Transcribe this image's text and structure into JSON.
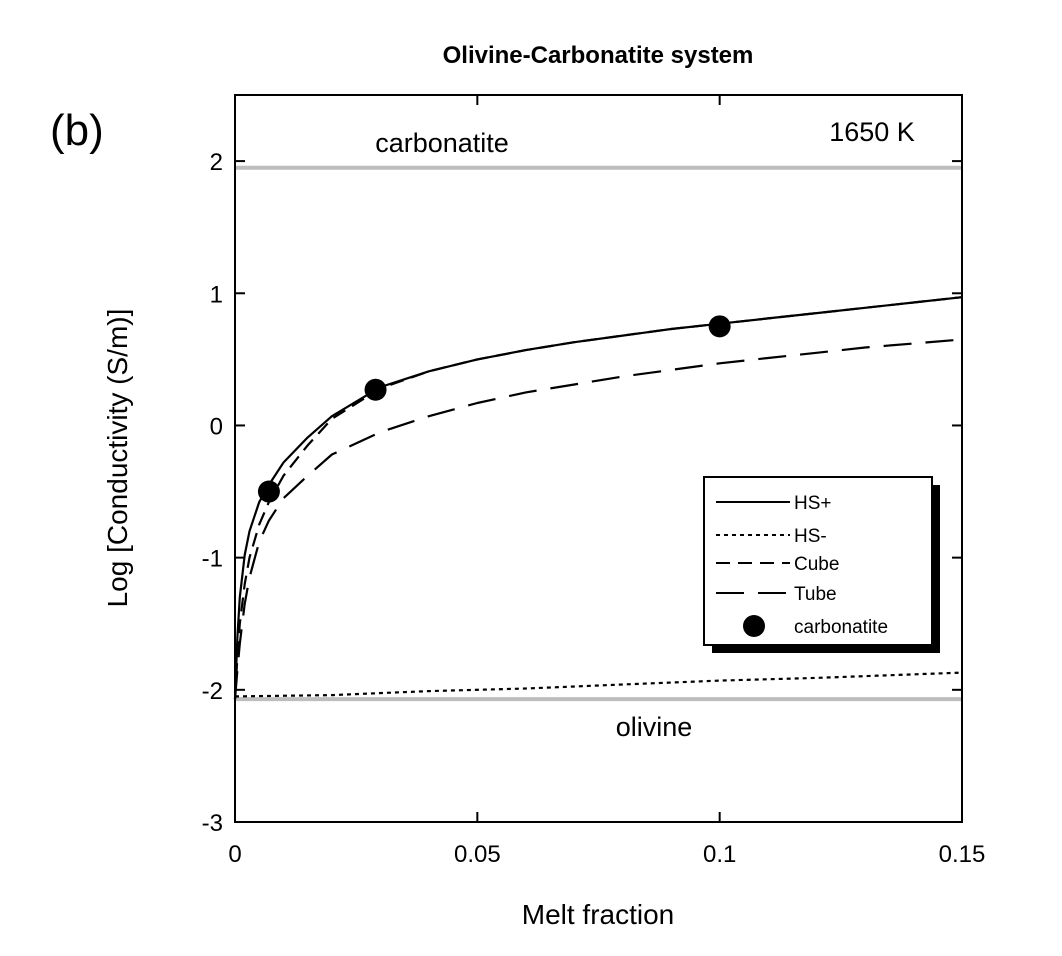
{
  "chart_data": {
    "type": "line",
    "title": "Olivine-Carbonatite system",
    "panel_label": "(b)",
    "annotation": "1650 K",
    "xlabel": "Melt fraction",
    "ylabel": "Log [Conductivity (S/m)]",
    "xlim": [
      0,
      0.15
    ],
    "ylim": [
      -3,
      2.5
    ],
    "x_ticks": [
      0,
      0.05,
      0.1,
      0.15
    ],
    "x_tick_labels": [
      "0",
      "0.05",
      "0.1",
      "0.15"
    ],
    "y_ticks": [
      -3,
      -2,
      -1,
      0,
      1,
      2
    ],
    "y_tick_labels": [
      "-3",
      "-2",
      "-1",
      "0",
      "1",
      "2"
    ],
    "grid": false,
    "legend_position": "right",
    "reference_lines": [
      {
        "name": "carbonatite",
        "y": 1.95,
        "color": "#bdbdbd"
      },
      {
        "name": "olivine",
        "y": -2.07,
        "color": "#bdbdbd"
      }
    ],
    "series": [
      {
        "name": "HS+",
        "style": "solid",
        "x": [
          0,
          0.0005,
          0.001,
          0.002,
          0.003,
          0.005,
          0.007,
          0.01,
          0.015,
          0.02,
          0.03,
          0.04,
          0.05,
          0.06,
          0.07,
          0.08,
          0.09,
          0.1,
          0.11,
          0.12,
          0.13,
          0.14,
          0.15
        ],
        "y": [
          -2.07,
          -1.6,
          -1.3,
          -0.98,
          -0.8,
          -0.58,
          -0.45,
          -0.28,
          -0.09,
          0.07,
          0.29,
          0.41,
          0.5,
          0.57,
          0.63,
          0.68,
          0.73,
          0.77,
          0.81,
          0.85,
          0.89,
          0.93,
          0.97
        ]
      },
      {
        "name": "HS-",
        "style": "dotted",
        "x": [
          0,
          0.02,
          0.04,
          0.06,
          0.08,
          0.1,
          0.12,
          0.15
        ],
        "y": [
          -2.05,
          -2.04,
          -2.01,
          -1.99,
          -1.96,
          -1.93,
          -1.91,
          -1.87
        ]
      },
      {
        "name": "Cube",
        "style": "dashed",
        "x": [
          0,
          0.0005,
          0.001,
          0.002,
          0.003,
          0.005,
          0.007,
          0.01,
          0.015,
          0.02,
          0.03,
          0.04,
          0.05,
          0.06,
          0.07,
          0.08,
          0.09,
          0.1,
          0.11,
          0.12,
          0.13,
          0.14,
          0.15
        ],
        "y": [
          -2.07,
          -1.75,
          -1.5,
          -1.2,
          -1.0,
          -0.75,
          -0.58,
          -0.38,
          -0.15,
          0.05,
          0.28,
          0.41,
          0.5,
          0.57,
          0.63,
          0.68,
          0.73,
          0.77,
          0.81,
          0.85,
          0.89,
          0.93,
          0.97
        ]
      },
      {
        "name": "Tube",
        "style": "longdash",
        "x": [
          0,
          0.0005,
          0.001,
          0.002,
          0.003,
          0.005,
          0.007,
          0.01,
          0.015,
          0.02,
          0.03,
          0.04,
          0.05,
          0.06,
          0.07,
          0.08,
          0.09,
          0.1,
          0.11,
          0.12,
          0.13,
          0.14,
          0.15
        ],
        "y": [
          -2.07,
          -1.85,
          -1.65,
          -1.35,
          -1.15,
          -0.88,
          -0.72,
          -0.55,
          -0.38,
          -0.22,
          -0.05,
          0.07,
          0.17,
          0.25,
          0.31,
          0.37,
          0.42,
          0.47,
          0.51,
          0.55,
          0.59,
          0.62,
          0.65
        ]
      }
    ],
    "points": {
      "name": "carbonatite",
      "x": [
        0.007,
        0.029,
        0.1
      ],
      "y": [
        -0.5,
        0.27,
        0.75
      ]
    }
  }
}
